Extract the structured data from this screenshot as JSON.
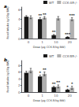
{
  "chart_data": [
    {
      "type": "bar",
      "title": "a",
      "categories": [
        "0",
        "1",
        "10",
        "20"
      ],
      "xlabel": "Dose (μg CCK-8/kg BW)",
      "ylabel": "Food Intake (g/20g BW)",
      "ylim": [
        0,
        6.5
      ],
      "yticks": [
        0,
        2,
        4,
        6
      ],
      "grid": false,
      "legend": "upper right",
      "series": [
        {
          "name": "WT",
          "color": "#1a1a1a",
          "values": [
            4.5,
            4.0,
            0.7,
            0.3
          ],
          "errors": [
            0.25,
            0.35,
            0.15,
            0.1
          ],
          "significance": [
            null,
            "**",
            "**",
            "***"
          ]
        },
        {
          "name": "CCK-AR-/-",
          "color": "#b0b0b0",
          "values": [
            4.4,
            4.3,
            4.2,
            4.0
          ],
          "errors": [
            0.3,
            0.25,
            0.35,
            0.3
          ],
          "significance": [
            null,
            "**",
            null,
            "***"
          ]
        }
      ]
    },
    {
      "type": "bar",
      "title": "b",
      "categories": [
        "0",
        "1",
        "10",
        "20"
      ],
      "xlabel": "Dose (μg CCK-8/kg BW)",
      "ylabel": "Food Intake (g/20g BW)",
      "ylim": [
        0,
        9.5
      ],
      "yticks": [
        0,
        2,
        4,
        6,
        8
      ],
      "grid": false,
      "legend": "upper right",
      "series": [
        {
          "name": "WT",
          "color": "#1a1a1a",
          "values": [
            5.8,
            4.7,
            1.5,
            0.7
          ],
          "errors": [
            0.5,
            0.4,
            0.25,
            0.18
          ],
          "significance": [
            null,
            "*",
            "**",
            "*"
          ]
        },
        {
          "name": "CCK-BR-/-",
          "color": "#b0b0b0",
          "values": [
            6.5,
            5.5,
            1.7,
            1.3
          ],
          "errors": [
            0.65,
            0.55,
            0.45,
            0.45
          ],
          "significance": [
            null,
            "**",
            "**",
            "*"
          ]
        }
      ]
    }
  ]
}
